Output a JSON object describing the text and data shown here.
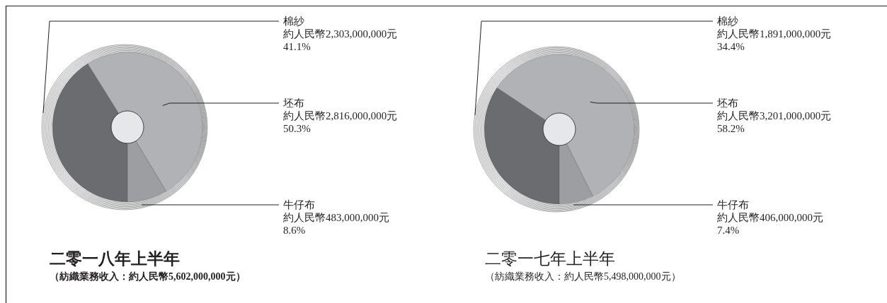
{
  "chart_data": [
    {
      "type": "donut",
      "title": "二零一八年上半年",
      "subtitle": "（紡織業務收入：約人民幣5,602,000,000元）",
      "categories": [
        "棉紗",
        "坯布",
        "牛仔布"
      ],
      "values": [
        2303000000,
        2816000000,
        483000000
      ],
      "value_labels": [
        "約人民幣2,303,000,000元\n41.1%",
        "約人民幣2,816,000,000元\n50.3%",
        "約人民幣483,000,000元\n8.6%"
      ],
      "colors": [
        "#6b6c70",
        "#b1b2b5",
        "#9d9ea1"
      ]
    },
    {
      "type": "donut",
      "title": "二零一七年上半年",
      "subtitle": "（紡織業務收入：約人民幣5,498,000,000元）",
      "categories": [
        "棉紗",
        "坯布",
        "牛仔布"
      ],
      "values": [
        1891000000,
        3201000000,
        406000000
      ],
      "value_labels": [
        "約人民幣1,891,000,000元\n34.4%",
        "約人民幣3,201,000,000元\n58.2%",
        "約人民幣406,000,000元\n7.4%"
      ],
      "colors": [
        "#6b6c70",
        "#b1b2b5",
        "#9d9ea1"
      ]
    }
  ]
}
